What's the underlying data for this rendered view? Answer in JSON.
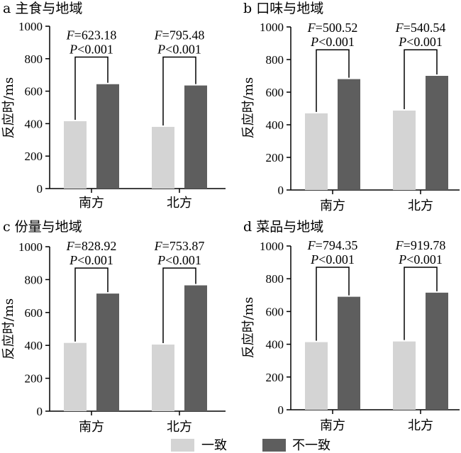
{
  "chart_data": [
    {
      "type": "bar",
      "panel_letter": "a",
      "title": "主食与地域",
      "ylabel": "反应时/ms",
      "ylim": [
        0,
        1000
      ],
      "yticks": [
        0,
        200,
        400,
        600,
        800,
        1000
      ],
      "categories": [
        "南方",
        "北方"
      ],
      "series": [
        {
          "name": "一致",
          "values": [
            415,
            380
          ]
        },
        {
          "name": "不一致",
          "values": [
            643,
            635
          ]
        }
      ],
      "annotations": [
        {
          "category": "南方",
          "F_label": "F",
          "F_value": "=623.18",
          "P_label": "P",
          "P_value": "<0.001"
        },
        {
          "category": "北方",
          "F_label": "F",
          "F_value": "=795.48",
          "P_label": "P",
          "P_value": "<0.001"
        }
      ],
      "bracket_top": 810
    },
    {
      "type": "bar",
      "panel_letter": "b",
      "title": "口味与地域",
      "ylabel": "反应时/ms",
      "ylim": [
        0,
        1000
      ],
      "yticks": [
        0,
        200,
        400,
        600,
        800,
        1000
      ],
      "categories": [
        "南方",
        "北方"
      ],
      "series": [
        {
          "name": "一致",
          "values": [
            470,
            487
          ]
        },
        {
          "name": "不一致",
          "values": [
            680,
            700
          ]
        }
      ],
      "annotations": [
        {
          "category": "南方",
          "F_label": "F",
          "F_value": "=500.52",
          "P_label": "P",
          "P_value": "<0.001"
        },
        {
          "category": "北方",
          "F_label": "F",
          "F_value": "=540.54",
          "P_label": "P",
          "P_value": "<0.001"
        }
      ],
      "bracket_top": 860
    },
    {
      "type": "bar",
      "panel_letter": "c",
      "title": "份量与地域",
      "ylabel": "反应时/ms",
      "ylim": [
        0,
        1000
      ],
      "yticks": [
        0,
        200,
        400,
        600,
        800,
        1000
      ],
      "categories": [
        "南方",
        "北方"
      ],
      "series": [
        {
          "name": "一致",
          "values": [
            415,
            405
          ]
        },
        {
          "name": "不一致",
          "values": [
            715,
            765
          ]
        }
      ],
      "annotations": [
        {
          "category": "南方",
          "F_label": "F",
          "F_value": "=828.92",
          "P_label": "P",
          "P_value": "<0.001"
        },
        {
          "category": "北方",
          "F_label": "F",
          "F_value": "=753.87",
          "P_label": "P",
          "P_value": "<0.001"
        }
      ],
      "bracket_top": 870
    },
    {
      "type": "bar",
      "panel_letter": "d",
      "title": "菜品与地域",
      "ylabel": "反应时/ms",
      "ylim": [
        0,
        1000
      ],
      "yticks": [
        0,
        200,
        400,
        600,
        800,
        1000
      ],
      "categories": [
        "南方",
        "北方"
      ],
      "series": [
        {
          "name": "一致",
          "values": [
            413,
            417
          ]
        },
        {
          "name": "不一致",
          "values": [
            690,
            715
          ]
        }
      ],
      "annotations": [
        {
          "category": "南方",
          "F_label": "F",
          "F_value": "=794.35",
          "P_label": "P",
          "P_value": "<0.001"
        },
        {
          "category": "北方",
          "F_label": "F",
          "F_value": "=919.78",
          "P_label": "P",
          "P_value": "<0.001"
        }
      ],
      "bracket_top": 870
    }
  ],
  "legend": {
    "items": [
      {
        "label": "一致",
        "color": "#d4d4d4"
      },
      {
        "label": "不一致",
        "color": "#5e5e5e"
      }
    ]
  },
  "colors": {
    "consistent": "#d4d4d4",
    "inconsistent": "#5e5e5e"
  }
}
